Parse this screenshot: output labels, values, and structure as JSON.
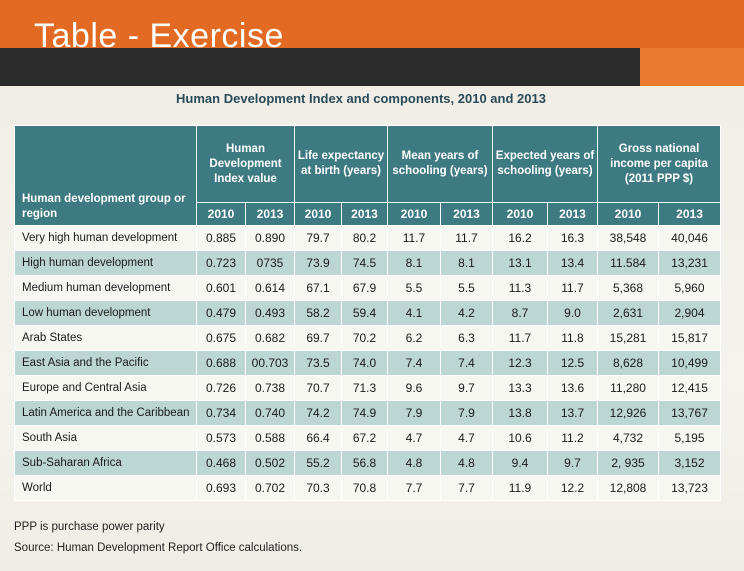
{
  "slide": {
    "title": "Table - Exercise"
  },
  "document": {
    "title": "Human Development Index and components, 2010 and 2013",
    "footnote": "PPP is purchase power parity",
    "source": "Source: Human Development Report Office calculations."
  },
  "table": {
    "row_header": "Human development group or region",
    "column_groups": [
      "Human Development Index value",
      "Life expectancy at birth (years)",
      "Mean years of schooling (years)",
      "Expected years of schooling (years)",
      "Gross national income per capita (2011 PPP $)"
    ],
    "years": [
      "2010",
      "2013"
    ],
    "rows": [
      {
        "region": "Very high human development",
        "values": [
          "0.885",
          "0.890",
          "79.7",
          "80.2",
          "11.7",
          "11.7",
          "16.2",
          "16.3",
          "38,548",
          "40,046"
        ]
      },
      {
        "region": "High human development",
        "values": [
          "0.723",
          "0735",
          "73.9",
          "74.5",
          "8.1",
          "8.1",
          "13.1",
          "13.4",
          "11.584",
          "13,231"
        ]
      },
      {
        "region": "Medium human development",
        "values": [
          "0.601",
          "0.614",
          "67.1",
          "67.9",
          "5.5",
          "5.5",
          "11.3",
          "11.7",
          "5,368",
          "5,960"
        ]
      },
      {
        "region": "Low human development",
        "values": [
          "0.479",
          "0.493",
          "58.2",
          "59.4",
          "4.1",
          "4.2",
          "8.7",
          "9.0",
          "2,631",
          "2,904"
        ]
      },
      {
        "region": "Arab States",
        "values": [
          "0.675",
          "0.682",
          "69.7",
          "70.2",
          "6.2",
          "6.3",
          "11.7",
          "11.8",
          "15,281",
          "15,817"
        ]
      },
      {
        "region": "East Asia and the Pacific",
        "values": [
          "0.688",
          "00.703",
          "73.5",
          "74.0",
          "7.4",
          "7.4",
          "12.3",
          "12.5",
          "8,628",
          "10,499"
        ]
      },
      {
        "region": "Europe and Central Asia",
        "values": [
          "0.726",
          "0.738",
          "70.7",
          "71.3",
          "9.6",
          "9.7",
          "13.3",
          "13.6",
          "11,280",
          "12,415"
        ]
      },
      {
        "region": "Latin America and the Caribbean",
        "values": [
          "0.734",
          "0.740",
          "74.2",
          "74.9",
          "7.9",
          "7.9",
          "13.8",
          "13.7",
          "12,926",
          "13,767"
        ]
      },
      {
        "region": "South Asia",
        "values": [
          "0.573",
          "0.588",
          "66.4",
          "67.2",
          "4.7",
          "4.7",
          "10.6",
          "11.2",
          "4,732",
          "5,195"
        ]
      },
      {
        "region": "Sub-Saharan Africa",
        "values": [
          "0.468",
          "0.502",
          "55.2",
          "56.8",
          "4.8",
          "4.8",
          "9.4",
          "9.7",
          "2, 935",
          "3,152"
        ]
      },
      {
        "region": "World",
        "values": [
          "0.693",
          "0.702",
          "70.3",
          "70.8",
          "7.7",
          "7.7",
          "11.9",
          "12.2",
          "12,808",
          "13,723"
        ]
      }
    ]
  },
  "colors": {
    "slide_orange": "#e36a22",
    "slide_dark": "#2c2c2c",
    "header_teal": "#3e7a82",
    "row_band": "#bcd6d4",
    "title_text": "#2b4a58"
  }
}
